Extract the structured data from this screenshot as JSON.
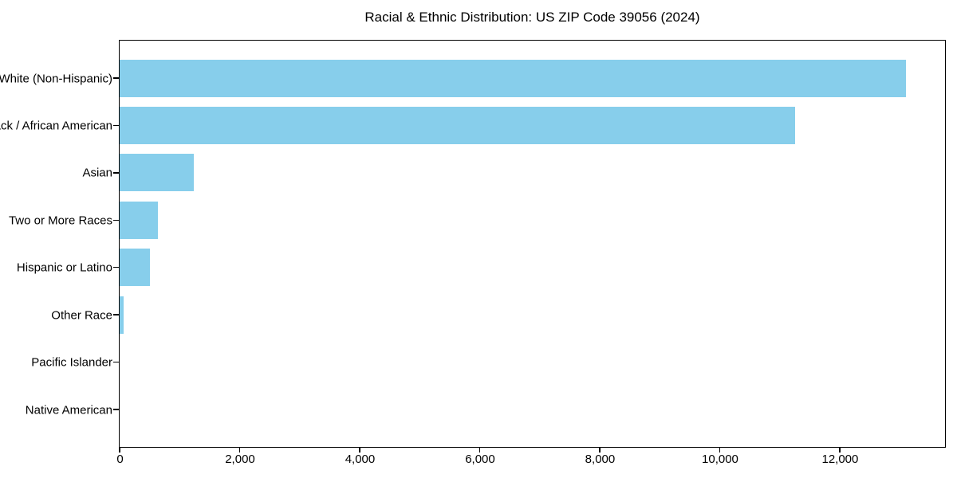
{
  "figure": {
    "title": "Racial & Ethnic Distribution: US ZIP Code 39056 (2024)"
  },
  "chart_data": {
    "type": "bar",
    "orientation": "horizontal",
    "title": "Racial & Ethnic Distribution: US ZIP Code 39056 (2024)",
    "categories": [
      "White (Non-Hispanic)",
      "Black / African American",
      "Asian",
      "Two or More Races",
      "Hispanic or Latino",
      "Other Race",
      "Pacific Islander",
      "Native American"
    ],
    "values": [
      13100,
      11250,
      1230,
      640,
      500,
      70,
      0,
      0
    ],
    "xlabel": "",
    "ylabel": "",
    "xlim": [
      0,
      13755
    ],
    "xticks": [
      0,
      2000,
      4000,
      6000,
      8000,
      10000,
      12000
    ],
    "xtick_labels": [
      "0",
      "2,000",
      "4,000",
      "6,000",
      "8,000",
      "10,000",
      "12,000"
    ],
    "bar_color": "#87CEEB",
    "grid": false,
    "legend_position": "none"
  }
}
